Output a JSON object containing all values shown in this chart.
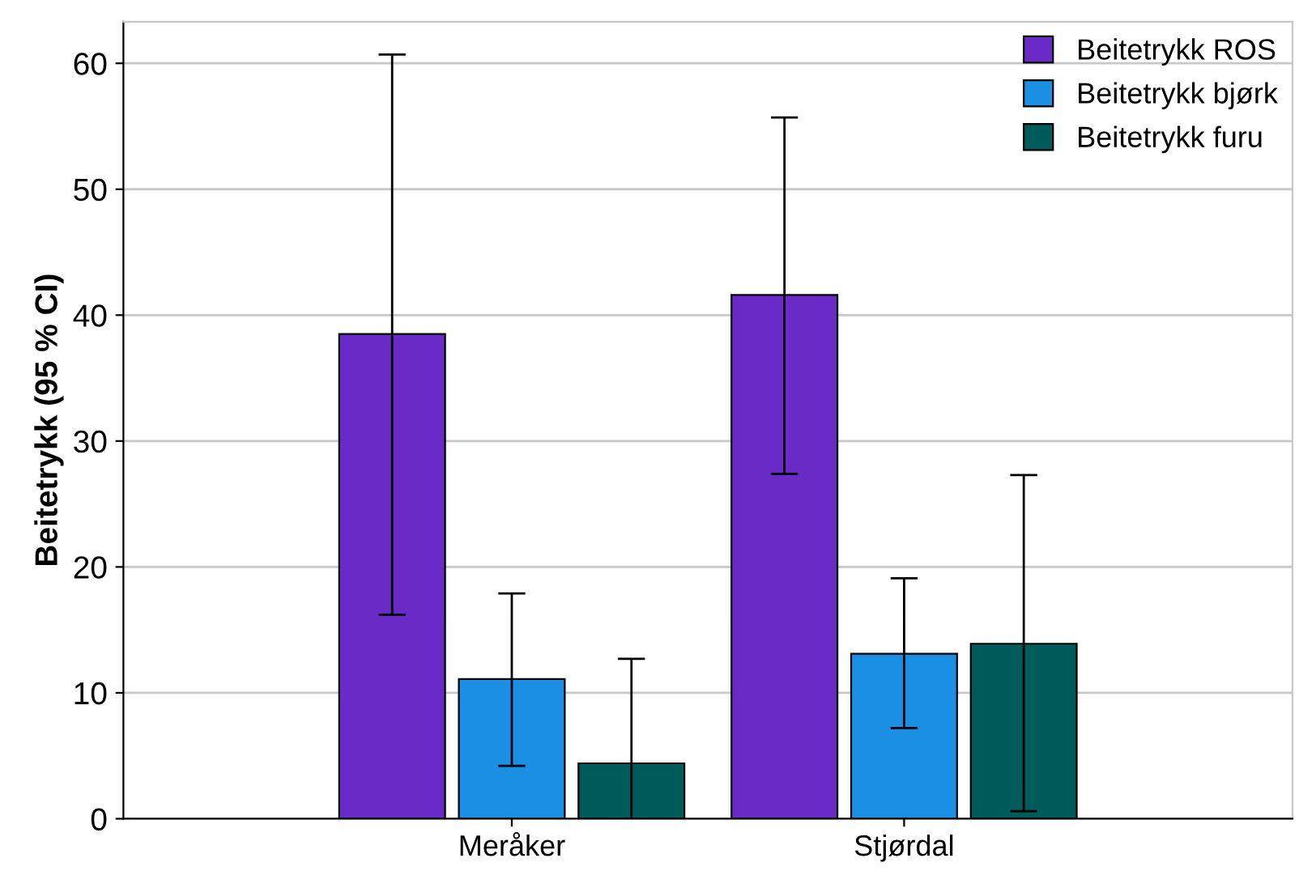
{
  "chart_data": {
    "type": "bar",
    "ylabel": "Beitetrykk (95 % CI)",
    "categories": [
      "Meråker",
      "Stjørdal"
    ],
    "series": [
      {
        "name": "Beitetrykk ROS",
        "color": "#6a2ac8",
        "values": [
          38.5,
          41.6
        ],
        "errors": [
          [
            16.2,
            60.7
          ],
          [
            27.4,
            55.7
          ]
        ]
      },
      {
        "name": "Beitetrykk bjørk",
        "color": "#1a8fe3",
        "values": [
          11.1,
          13.1
        ],
        "errors": [
          [
            4.2,
            17.9
          ],
          [
            7.2,
            19.1
          ]
        ]
      },
      {
        "name": "Beitetrykk furu",
        "color": "#005c5a",
        "values": [
          4.4,
          13.9
        ],
        "errors": [
          [
            0,
            12.7
          ],
          [
            0.6,
            27.3
          ]
        ]
      }
    ],
    "ylim": [
      0,
      63.3
    ],
    "yticks": [
      0,
      10,
      20,
      30,
      40,
      50,
      60
    ],
    "grid": "y",
    "legend": "top right"
  }
}
